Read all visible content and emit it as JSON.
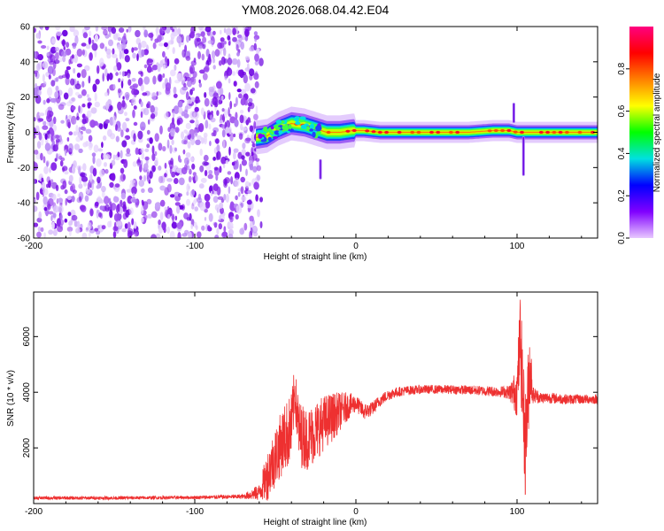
{
  "figure": {
    "title": "YM08.2026.068.04.42.E04"
  },
  "chart_data": [
    {
      "type": "heatmap",
      "xlabel": "Height of straight line (km)",
      "ylabel": "Frequency (Hz)",
      "xlim": [
        -200,
        150
      ],
      "ylim": [
        -60,
        60
      ],
      "xticks": [
        -200,
        -100,
        0,
        100
      ],
      "xtick_labels": [
        "-200",
        "-100",
        "0",
        "100"
      ],
      "yticks": [
        60,
        40,
        20,
        0,
        -20,
        -40,
        -60
      ],
      "ytick_labels": [
        "60",
        "40",
        "20",
        "0",
        "-20",
        "-40",
        "-60"
      ],
      "colorbar": {
        "label": "Normalized spectral amplitude",
        "range": [
          0,
          1
        ],
        "ticks": [
          0.0,
          0.2,
          0.4,
          0.6,
          0.8
        ],
        "tick_labels": [
          "0.0",
          "0.2",
          "0.4",
          "0.6",
          "0.8"
        ],
        "colors": [
          "#e8c8ff",
          "#8000ff",
          "#0000ff",
          "#00e0e0",
          "#00ff00",
          "#ffff00",
          "#ff8000",
          "#ff0000",
          "#ff0080"
        ]
      },
      "noise_region": {
        "x_range": [
          -200,
          -62
        ]
      },
      "ridge": [
        {
          "x": -62,
          "y": -3
        },
        {
          "x": -55,
          "y": -2
        },
        {
          "x": -48,
          "y": 2
        },
        {
          "x": -40,
          "y": 5
        },
        {
          "x": -32,
          "y": 4
        },
        {
          "x": -25,
          "y": 2
        },
        {
          "x": -18,
          "y": 0
        },
        {
          "x": -10,
          "y": 0
        },
        {
          "x": -2,
          "y": 1
        },
        {
          "x": 5,
          "y": 1
        },
        {
          "x": 15,
          "y": 0
        },
        {
          "x": 40,
          "y": 0
        },
        {
          "x": 70,
          "y": 0
        },
        {
          "x": 85,
          "y": 1
        },
        {
          "x": 95,
          "y": 1
        },
        {
          "x": 100,
          "y": 0
        },
        {
          "x": 150,
          "y": 0
        }
      ],
      "features": [
        {
          "x": 98,
          "y_range": [
            6,
            16
          ]
        },
        {
          "x": 104,
          "y_range": [
            -24,
            -3
          ]
        },
        {
          "x": -22,
          "y_range": [
            -26,
            -16
          ]
        }
      ]
    },
    {
      "type": "line",
      "xlabel": "Height of straight line (km)",
      "ylabel": "SNR (10 * v/v)",
      "xlim": [
        -200,
        150
      ],
      "ylim": [
        0,
        7600
      ],
      "xticks": [
        -200,
        -100,
        0,
        100
      ],
      "xtick_labels": [
        "-200",
        "-100",
        "0",
        "100"
      ],
      "yticks": [
        2000,
        4000,
        6000
      ],
      "ytick_labels": [
        "2000",
        "4000",
        "6000"
      ],
      "series": [
        {
          "color": "#ee3030",
          "x": [
            -200,
            -150,
            -100,
            -70,
            -60,
            -55,
            -50,
            -45,
            -40,
            -38,
            -35,
            -30,
            -25,
            -20,
            -15,
            -10,
            -5,
            0,
            5,
            10,
            15,
            20,
            25,
            30,
            40,
            50,
            60,
            70,
            80,
            90,
            95,
            100,
            102,
            105,
            108,
            110,
            115,
            120,
            130,
            140,
            150
          ],
          "values": [
            200,
            200,
            220,
            250,
            400,
            1000,
            1700,
            2300,
            2700,
            4000,
            2500,
            2300,
            2600,
            2900,
            3100,
            3300,
            3500,
            3600,
            3300,
            3400,
            3700,
            3900,
            4000,
            4050,
            4100,
            4100,
            4100,
            4080,
            4050,
            4020,
            4000,
            4000,
            6000,
            2000,
            5000,
            3900,
            3800,
            3800,
            3750,
            3750,
            3750
          ],
          "noise": [
            60,
            60,
            60,
            80,
            300,
            900,
            1100,
            1200,
            1300,
            900,
            1200,
            1100,
            1100,
            1000,
            900,
            700,
            500,
            300,
            300,
            250,
            220,
            200,
            180,
            170,
            160,
            160,
            160,
            170,
            180,
            200,
            250,
            900,
            1700,
            1900,
            1500,
            300,
            200,
            200,
            180,
            170,
            170
          ]
        }
      ]
    }
  ]
}
